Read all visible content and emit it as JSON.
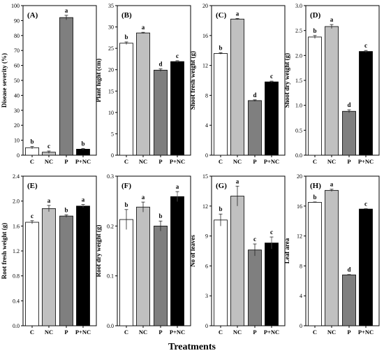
{
  "figure": {
    "xlabel": "Treatments"
  },
  "chart_data": [
    {
      "type": "bar",
      "panel": "(A)",
      "ylabel": "Disease severity (%)",
      "categories": [
        "C",
        "NC",
        "P",
        "P+NC"
      ],
      "values": [
        5,
        2,
        92,
        4
      ],
      "errors": [
        0.8,
        0.8,
        1.5,
        0.5
      ],
      "letters": [
        "b",
        "c",
        "a",
        "b"
      ],
      "ylim": [
        0,
        100
      ],
      "yticks": [
        0,
        10,
        20,
        30,
        40,
        50,
        60,
        70,
        80,
        90,
        100
      ],
      "yticklabels": [
        "0",
        "10",
        "20",
        "30",
        "40",
        "50",
        "60",
        "70",
        "80",
        "90",
        "100"
      ]
    },
    {
      "type": "bar",
      "panel": "(B)",
      "ylabel": "Plant hight (cm)",
      "categories": [
        "C",
        "NC",
        "P",
        "P+NC"
      ],
      "values": [
        26.2,
        28.6,
        19.9,
        21.9
      ],
      "errors": [
        0.3,
        0.15,
        0.3,
        0.2
      ],
      "letters": [
        "b",
        "a",
        "d",
        "c"
      ],
      "ylim": [
        0,
        35
      ],
      "yticks": [
        0,
        5,
        10,
        15,
        20,
        25,
        30,
        35
      ],
      "yticklabels": [
        "0",
        "5",
        "10",
        "15",
        "20",
        "25",
        "30",
        "35"
      ]
    },
    {
      "type": "bar",
      "panel": "(C)",
      "ylabel": "Shoot fresh weight (g)",
      "categories": [
        "C",
        "NC",
        "P",
        "P+NC"
      ],
      "values": [
        13.6,
        18.2,
        7.3,
        9.8
      ],
      "errors": [
        0.1,
        0.08,
        0.1,
        0.1
      ],
      "letters": [
        "b",
        "a",
        "d",
        "c"
      ],
      "ylim": [
        0,
        20
      ],
      "yticks": [
        0,
        4,
        8,
        12,
        16,
        20
      ],
      "yticklabels": [
        "0",
        "4",
        "8",
        "12",
        "16",
        "20"
      ]
    },
    {
      "type": "bar",
      "panel": "(D)",
      "ylabel": "Shoot dry weight (g)",
      "categories": [
        "C",
        "NC",
        "P",
        "P+NC"
      ],
      "values": [
        2.37,
        2.58,
        0.88,
        2.08
      ],
      "errors": [
        0.03,
        0.04,
        0.03,
        0.02
      ],
      "letters": [
        "b",
        "a",
        "d",
        "c"
      ],
      "ylim": [
        0,
        3.0
      ],
      "yticks": [
        0,
        0.5,
        1.0,
        1.5,
        2.0,
        2.5,
        3.0
      ],
      "yticklabels": [
        "0.0",
        "0.5",
        "1.0",
        "1.5",
        "2.0",
        "2.5",
        "3.0"
      ]
    },
    {
      "type": "bar",
      "panel": "(E)",
      "ylabel": "Root fresh weight (g)",
      "categories": [
        "C",
        "NC",
        "P",
        "P+NC"
      ],
      "values": [
        1.66,
        1.88,
        1.76,
        1.92
      ],
      "errors": [
        0.025,
        0.05,
        0.02,
        0.025
      ],
      "letters": [
        "c",
        "a",
        "b",
        "a"
      ],
      "ylim": [
        0,
        2.4
      ],
      "yticks": [
        0,
        0.4,
        0.8,
        1.2,
        1.6,
        2.0,
        2.4
      ],
      "yticklabels": [
        "0.0",
        "0.4",
        "0.8",
        "1.2",
        "1.6",
        "2.0",
        "2.4"
      ]
    },
    {
      "type": "bar",
      "panel": "(F)",
      "ylabel": "Root dry weight (g)",
      "categories": [
        "C",
        "NC",
        "P",
        "P+NC"
      ],
      "values": [
        0.213,
        0.238,
        0.2,
        0.259
      ],
      "errors": [
        0.02,
        0.01,
        0.01,
        0.01
      ],
      "letters": [
        "b",
        "a",
        "b",
        "a"
      ],
      "ylim": [
        0,
        0.3
      ],
      "yticks": [
        0,
        0.1,
        0.2,
        0.3
      ],
      "yticklabels": [
        "0.0",
        "0.1",
        "0.2",
        "0.3"
      ]
    },
    {
      "type": "bar",
      "panel": "(G)",
      "ylabel": "No of leaves",
      "categories": [
        "C",
        "NC",
        "P",
        "P+NC"
      ],
      "values": [
        10.6,
        13.0,
        7.6,
        8.3
      ],
      "errors": [
        0.6,
        1.0,
        0.6,
        0.6
      ],
      "letters": [
        "b",
        "a",
        "c",
        "c"
      ],
      "ylim": [
        0,
        15
      ],
      "yticks": [
        0,
        3,
        6,
        9,
        12,
        15
      ],
      "yticklabels": [
        "0",
        "3",
        "6",
        "9",
        "12",
        "15"
      ]
    },
    {
      "type": "bar",
      "panel": "(H)",
      "ylabel": "Leaf area",
      "categories": [
        "C",
        "NC",
        "P",
        "P+NC"
      ],
      "values": [
        16.5,
        18.1,
        6.8,
        15.6
      ],
      "errors": [
        0.05,
        0.15,
        0.05,
        0.05
      ],
      "letters": [
        "b",
        "a",
        "d",
        "c"
      ],
      "ylim": [
        0,
        20
      ],
      "yticks": [
        0,
        4,
        8,
        12,
        16,
        20
      ],
      "yticklabels": [
        "0",
        "4",
        "8",
        "12",
        "16",
        "20"
      ]
    }
  ],
  "colors": {
    "C": "#ffffff",
    "NC": "#c0c0c0",
    "P": "#7f7f7f",
    "P+NC": "#000000"
  }
}
